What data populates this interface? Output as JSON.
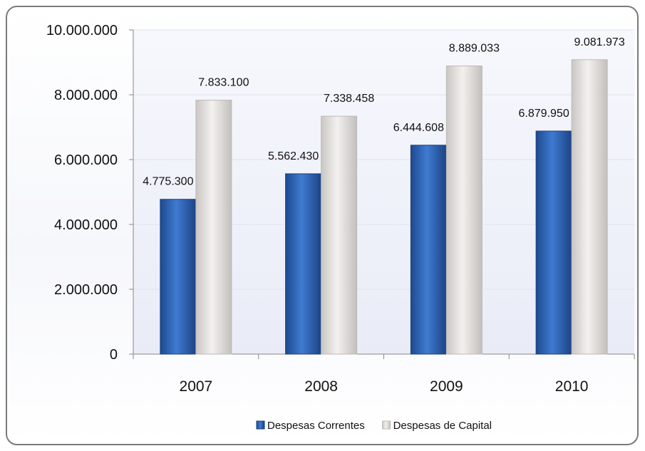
{
  "chart_data": {
    "type": "bar",
    "title": "",
    "xlabel": "",
    "ylabel": "",
    "categories": [
      "2007",
      "2008",
      "2009",
      "2010"
    ],
    "series": [
      {
        "name": "Despesas Correntes",
        "values": [
          4775300,
          5562430,
          6444608,
          6879950
        ],
        "labels": [
          "4.775.300",
          "5.562.430",
          "6.444.608",
          "6.879.950"
        ]
      },
      {
        "name": "Despesas de Capital",
        "values": [
          7833100,
          7338458,
          8889033,
          9081973
        ],
        "labels": [
          "7.833.100",
          "7.338.458",
          "8.889.033",
          "9.081.973"
        ]
      }
    ],
    "ylim": [
      0,
      10000000
    ],
    "yticks": [
      0,
      2000000,
      4000000,
      6000000,
      8000000,
      10000000
    ],
    "ytick_labels": [
      "0",
      "2.000.000",
      "4.000.000",
      "6.000.000",
      "8.000.000",
      "10.000.000"
    ],
    "grid": true,
    "legend_position": "bottom",
    "colors": {
      "Despesas Correntes": "#2e64b2",
      "Despesas de Capital": "#dcdad8"
    }
  }
}
